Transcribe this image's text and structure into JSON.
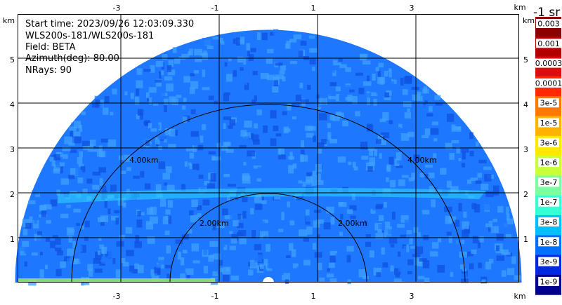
{
  "info": {
    "start_time": "Start time: 2023/09/26 12:03:09.330",
    "instrument": "WLS200s-181/WLS200s-181",
    "field": "Field: BETA",
    "azimuth": "Azimuth(deg): 80.00",
    "nrays": "NRays: 90"
  },
  "axes": {
    "x_ticks": [
      "-3",
      "-1",
      "1",
      "3"
    ],
    "y_ticks": [
      "1",
      "2",
      "3",
      "4",
      "5"
    ],
    "unit": "km"
  },
  "range_rings": [
    "2.00km",
    "4.00km"
  ],
  "colorbar": {
    "title": "-1 sr",
    "labels": [
      "0.003",
      "0.001",
      "0.0003",
      "0.0001",
      "3e-5",
      "1e-5",
      "3e-6",
      "1e-6",
      "3e-7",
      "1e-7",
      "3e-8",
      "1e-8",
      "3e-9",
      "1e-9"
    ],
    "colors": [
      "#8b0000",
      "#b20000",
      "#d91010",
      "#ff2a00",
      "#ff7800",
      "#ffb300",
      "#ffe800",
      "#c8ff38",
      "#7dffa0",
      "#36ffd6",
      "#00bfff",
      "#0070ff",
      "#0028e0",
      "#00008f"
    ]
  },
  "palette": {
    "field_main": "#1e78ff",
    "field_light": "#3fa0ff",
    "field_dark": "#0f52e0",
    "field_cyan": "#2fd8ff"
  }
}
